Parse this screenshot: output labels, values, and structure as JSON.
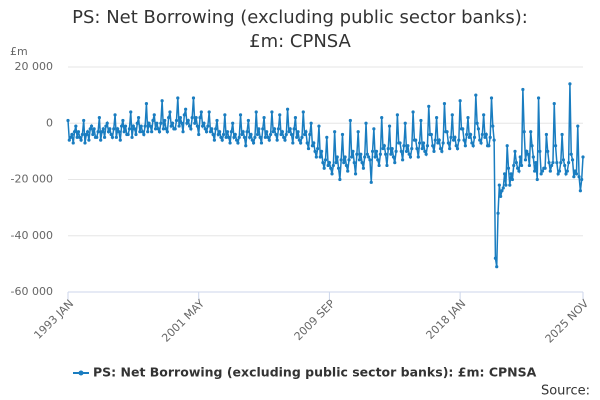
{
  "chart_data": {
    "type": "line",
    "title": "PS: Net Borrowing (excluding public sector banks): £m: CPNSA",
    "y_unit": "£m",
    "source": "Source:",
    "categories": [
      "1993 JAN",
      null,
      null,
      null,
      null,
      null,
      null,
      null,
      null,
      null,
      null,
      null,
      null,
      null,
      null,
      null,
      null,
      null,
      null,
      null,
      null,
      null,
      null,
      null,
      null,
      null,
      null,
      null,
      null,
      null,
      null,
      null,
      null,
      null,
      null,
      null,
      null,
      null,
      null,
      null,
      null,
      null,
      null,
      null,
      null,
      null,
      null,
      null,
      null,
      null,
      null,
      null,
      null,
      null,
      null,
      null,
      null,
      null,
      null,
      null,
      null,
      null,
      null,
      null,
      null,
      null,
      null,
      null,
      null,
      null,
      null,
      null,
      null,
      null,
      null,
      null,
      null,
      null,
      null,
      null,
      null,
      null,
      null,
      null,
      null,
      null,
      null,
      null,
      null,
      null,
      null,
      null,
      null,
      null,
      null,
      null,
      null,
      null,
      null,
      null,
      "2001 MAY",
      null,
      null,
      null,
      null,
      null,
      null,
      null,
      null,
      null,
      null,
      null,
      null,
      null,
      null,
      null,
      null,
      null,
      null,
      null,
      null,
      null,
      null,
      null,
      null,
      null,
      null,
      null,
      null,
      null,
      null,
      null,
      null,
      null,
      null,
      null,
      null,
      null,
      null,
      null,
      null,
      null,
      null,
      null,
      null,
      null,
      null,
      null,
      null,
      null,
      null,
      null,
      null,
      null,
      null,
      null,
      null,
      null,
      null,
      null,
      null,
      null,
      null,
      null,
      null,
      null,
      null,
      null,
      null,
      null,
      null,
      null,
      null,
      null,
      null,
      null,
      null,
      null,
      null,
      null,
      null,
      null,
      null,
      null,
      null,
      null,
      null,
      null,
      null,
      null,
      null,
      null,
      null,
      null,
      null,
      null,
      null,
      null,
      null,
      null,
      "2009 SEP",
      null,
      null,
      null,
      null,
      null,
      null,
      null,
      null,
      null,
      null,
      null,
      null,
      null,
      null,
      null,
      null,
      null,
      null,
      null,
      null,
      null,
      null,
      null,
      null,
      null,
      null,
      null,
      null,
      null,
      null,
      null,
      null,
      null,
      null,
      null,
      null,
      null,
      null,
      null,
      null,
      null,
      null,
      null,
      null,
      null,
      null,
      null,
      null,
      null,
      null,
      null,
      null,
      null,
      null,
      null,
      null,
      null,
      null,
      null,
      null,
      null,
      null,
      null,
      null,
      null,
      null,
      null,
      null,
      null,
      null,
      null,
      null,
      null,
      null,
      null,
      null,
      null,
      null,
      null,
      null,
      null,
      null,
      null,
      null,
      null,
      null,
      null,
      null,
      null,
      null,
      null,
      null,
      null,
      null,
      null,
      null,
      null,
      null,
      null,
      "2018 JAN",
      null,
      null,
      null,
      null,
      null,
      null,
      null,
      null,
      null,
      null,
      null,
      null,
      null,
      null,
      null,
      null,
      null,
      null,
      null,
      null,
      null,
      null,
      null,
      null,
      null,
      null,
      null,
      null,
      null,
      null,
      null,
      null,
      null,
      null,
      null,
      null,
      null,
      null,
      null,
      null,
      null,
      null,
      null,
      null,
      null,
      null,
      null,
      null,
      null,
      null,
      null,
      null,
      null,
      null,
      null,
      null,
      null,
      null,
      null,
      null,
      null,
      null,
      null,
      null,
      null,
      null,
      null,
      null,
      null,
      null,
      null,
      null,
      null,
      null,
      null,
      null,
      null,
      null,
      null,
      null,
      null,
      null,
      null,
      null,
      null,
      null,
      null,
      null,
      null,
      null,
      null,
      null,
      null,
      "2025 NOV"
    ],
    "series": [
      {
        "name": "PS: Net Borrowing (excluding public sector banks): £m: CPNSA",
        "color": "#1a7dc0",
        "values": [
          1000,
          -6000,
          -5000,
          -4000,
          -7000,
          -3000,
          -1000,
          -5000,
          -3000,
          -5000,
          -6000,
          -4000,
          1000,
          -7000,
          -4000,
          -3000,
          -6000,
          -2000,
          -1000,
          -4000,
          -2000,
          -5000,
          -5000,
          -3000,
          2000,
          -6000,
          -3000,
          -2000,
          -5000,
          -1000,
          0,
          -3000,
          -2000,
          -4000,
          -5000,
          -2000,
          3000,
          -5000,
          -2000,
          -3000,
          -6000,
          -1000,
          1000,
          -3000,
          -1000,
          -4000,
          -4000,
          -2000,
          4000,
          -5000,
          -1000,
          -2000,
          -4000,
          0,
          2000,
          -3000,
          -1000,
          -3000,
          -4000,
          -1000,
          7000,
          -3000,
          0,
          -1000,
          -3000,
          1000,
          3000,
          -2000,
          0,
          -2000,
          -3000,
          0,
          8000,
          -2000,
          1000,
          -2000,
          -3000,
          2000,
          4000,
          -1000,
          0,
          -2000,
          -2000,
          1000,
          9000,
          -1000,
          2000,
          0,
          -3000,
          3000,
          5000,
          0,
          1000,
          -1000,
          -2000,
          2000,
          9000,
          0,
          2000,
          -1000,
          -4000,
          2000,
          4000,
          -1000,
          0,
          -2000,
          -3000,
          -1000,
          4000,
          -3000,
          -2000,
          -4000,
          -6000,
          -2000,
          1000,
          -4000,
          -3000,
          -5000,
          -6000,
          -4000,
          3000,
          -5000,
          -3000,
          -5000,
          -7000,
          -3000,
          0,
          -5000,
          -4000,
          -6000,
          -7000,
          -5000,
          3000,
          -4000,
          -3000,
          -5000,
          -8000,
          -3000,
          1000,
          -5000,
          -4000,
          -6000,
          -7000,
          -5000,
          4000,
          -4000,
          -2000,
          -5000,
          -7000,
          -2000,
          2000,
          -5000,
          -3000,
          -5000,
          -6000,
          -4000,
          4000,
          -3000,
          -2000,
          -4000,
          -6000,
          -2000,
          3000,
          -4000,
          -3000,
          -5000,
          -6000,
          -4000,
          5000,
          -3000,
          -2000,
          -4000,
          -7000,
          -2000,
          2000,
          -5000,
          -3000,
          -6000,
          -7000,
          -5000,
          4000,
          -4000,
          -3000,
          -7000,
          -9000,
          -4000,
          0,
          -8000,
          -7000,
          -10000,
          -12000,
          -9000,
          -1000,
          -12000,
          -10000,
          -14000,
          -16000,
          -13000,
          -5000,
          -15000,
          -14000,
          -16000,
          -18000,
          -15000,
          -3000,
          -14000,
          -12000,
          -16000,
          -20000,
          -13000,
          -4000,
          -14000,
          -12000,
          -15000,
          -17000,
          -13000,
          1000,
          -12000,
          -10000,
          -14000,
          -18000,
          -11000,
          -3000,
          -13000,
          -11000,
          -14000,
          -16000,
          -12000,
          0,
          -11000,
          -12000,
          -13000,
          -21000,
          -10000,
          -2000,
          -12000,
          -10000,
          -13000,
          -15000,
          -11000,
          2000,
          -9000,
          -8000,
          -11000,
          -15000,
          -9000,
          -1000,
          -11000,
          -9000,
          -12000,
          -14000,
          -10000,
          3000,
          -7000,
          -7000,
          -10000,
          -13000,
          -8000,
          0,
          -10000,
          -8000,
          -11000,
          -12000,
          -9000,
          4000,
          -6000,
          -6000,
          -9000,
          -12000,
          -7000,
          1000,
          -9000,
          -7000,
          -10000,
          -11000,
          -8000,
          6000,
          -4000,
          -4000,
          -8000,
          -10000,
          -6000,
          2000,
          -7000,
          -6000,
          -9000,
          -10000,
          -7000,
          7000,
          -3000,
          -3000,
          -7000,
          -9000,
          -5000,
          3000,
          -6000,
          -5000,
          -8000,
          -9000,
          -6000,
          8000,
          -2000,
          -2000,
          -6000,
          -8000,
          -4000,
          2000,
          -5000,
          -4000,
          -7000,
          -8000,
          -5000,
          10000,
          0,
          -2000,
          -6000,
          -7000,
          -4000,
          3000,
          -5000,
          -4000,
          -8000,
          -8000,
          -5000,
          9000,
          -1000,
          -6000,
          -48000,
          -51000,
          -32000,
          -22000,
          -26000,
          -24000,
          -23000,
          -18000,
          -22000,
          -8000,
          -16000,
          -22000,
          -18000,
          -20000,
          -15000,
          -10000,
          -14000,
          -16000,
          -17000,
          -12000,
          -15000,
          12000,
          -3000,
          -13000,
          -10000,
          -11000,
          -15000,
          -3000,
          -8000,
          -12000,
          -17000,
          -14000,
          -20000,
          9000,
          -10000,
          -18000,
          -17000,
          -16000,
          -16000,
          -4000,
          -10000,
          -14000,
          -17000,
          -15000,
          -14000,
          7000,
          -8000,
          -14000,
          -18000,
          -17000,
          -14000,
          -4000,
          -13000,
          -15000,
          -18000,
          -17000,
          -14000,
          14000,
          -11000,
          -13000,
          -19000,
          -17000,
          -18000,
          -1000,
          -19000,
          -24000,
          -20000,
          -12000
        ]
      }
    ],
    "ylim": [
      -60000,
      20000
    ],
    "yticks": [
      {
        "value": -60000,
        "label": "-60 000"
      },
      {
        "value": -40000,
        "label": "-40 000"
      },
      {
        "value": -20000,
        "label": "-20 000"
      },
      0,
      {
        "value": 20000,
        "label": "20 000"
      }
    ],
    "grid": true,
    "legend": "bottom"
  }
}
